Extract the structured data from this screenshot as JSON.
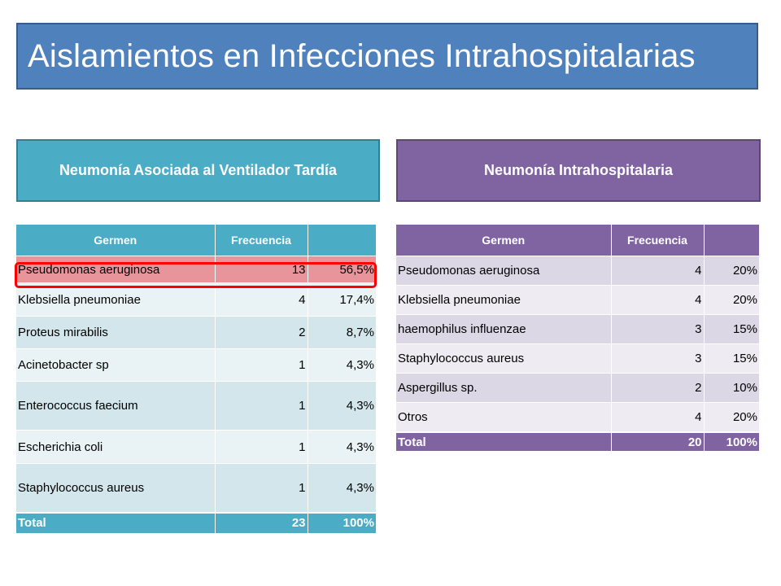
{
  "title": "Aislamientos en Infecciones Intrahospitalarias",
  "colors": {
    "title_bg": "#4f81bd",
    "left_accent": "#4bacc6",
    "right_accent": "#8064a2",
    "highlight_border": "#ff0000",
    "highlight_fill": "#e8949b"
  },
  "left": {
    "section_label": "Neumonía Asociada al Ventilador Tardía",
    "headers": [
      "Germen",
      "Frecuencia",
      ""
    ],
    "rows": [
      {
        "germen": "Pseudomonas aeruginosa",
        "frecuencia": "13",
        "porcentaje": "56,5%"
      },
      {
        "germen": "Klebsiella pneumoniae",
        "frecuencia": "4",
        "porcentaje": "17,4%"
      },
      {
        "germen": "Proteus mirabilis",
        "frecuencia": "2",
        "porcentaje": "8,7%"
      },
      {
        "germen": "Acinetobacter sp",
        "frecuencia": "1",
        "porcentaje": "4,3%"
      },
      {
        "germen": "Enterococcus faecium",
        "frecuencia": "1",
        "porcentaje": "4,3%"
      },
      {
        "germen": "Escherichia coli",
        "frecuencia": "1",
        "porcentaje": "4,3%"
      },
      {
        "germen": "Staphylococcus aureus",
        "frecuencia": "1",
        "porcentaje": "4,3%"
      }
    ],
    "total": {
      "label": "Total",
      "frecuencia": "23",
      "porcentaje": "100%"
    }
  },
  "right": {
    "section_label": "Neumonía Intrahospitalaria",
    "headers": [
      "Germen",
      "Frecuencia",
      ""
    ],
    "rows": [
      {
        "germen": "Pseudomonas aeruginosa",
        "frecuencia": "4",
        "porcentaje": "20%"
      },
      {
        "germen": "Klebsiella pneumoniae",
        "frecuencia": "4",
        "porcentaje": "20%"
      },
      {
        "germen": "haemophilus influenzae",
        "frecuencia": "3",
        "porcentaje": "15%"
      },
      {
        "germen": "Staphylococcus aureus",
        "frecuencia": "3",
        "porcentaje": "15%"
      },
      {
        "germen": "Aspergillus sp.",
        "frecuencia": "2",
        "porcentaje": "10%"
      },
      {
        "germen": "Otros",
        "frecuencia": "4",
        "porcentaje": "20%"
      }
    ],
    "total": {
      "label": "Total",
      "frecuencia": "20",
      "porcentaje": "100%"
    }
  }
}
